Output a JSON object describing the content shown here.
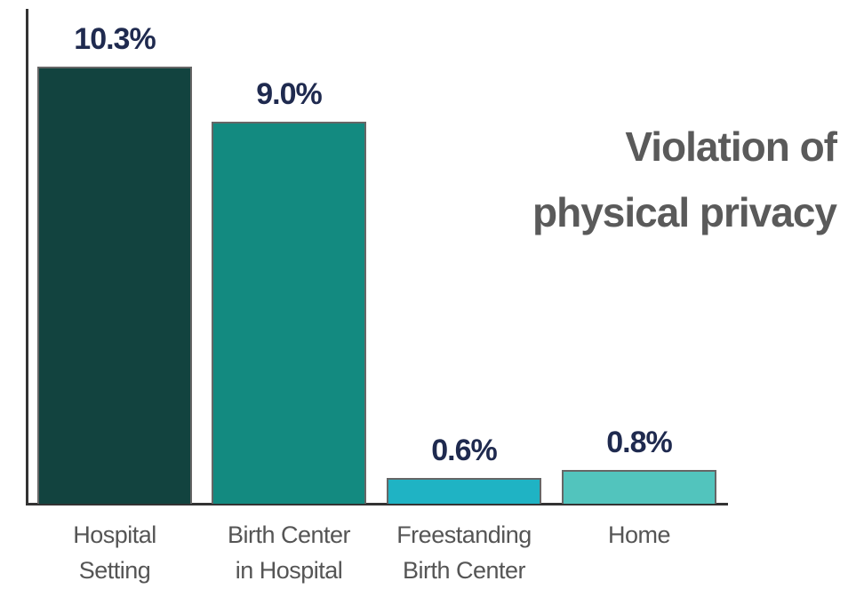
{
  "chart_data": {
    "type": "bar",
    "title": "Violation of\nphysical privacy",
    "categories": [
      "Hospital\nSetting",
      "Birth Center\nin Hospital",
      "Freestanding\nBirth Center",
      "Home"
    ],
    "values": [
      10.3,
      9.0,
      0.6,
      0.8
    ],
    "value_labels": [
      "10.3%",
      "9.0%",
      "0.6%",
      "0.8%"
    ],
    "colors": [
      "#12433f",
      "#138a80",
      "#1fb3c4",
      "#52c4bd"
    ],
    "ylim": [
      0,
      11.65
    ]
  }
}
